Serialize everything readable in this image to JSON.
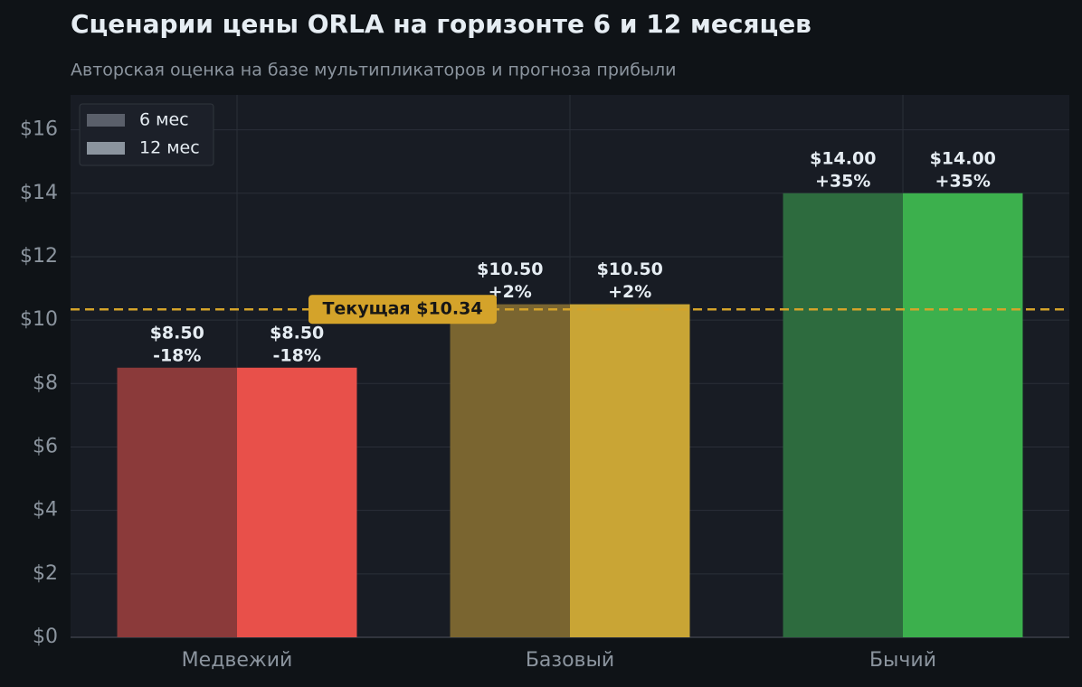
{
  "chart_data": {
    "type": "bar",
    "title": "Сценарии цены ORLA на горизонте 6 и 12 месяцев",
    "subtitle": "Авторская оценка на базе мультипликаторов и прогноза прибыли",
    "categories": [
      "Медвежий",
      "Базовый",
      "Бычий"
    ],
    "series": [
      {
        "name": "6 мес",
        "color": "#5a5f6a",
        "bar_colors": [
          "#8b3a3a",
          "#7a6530",
          "#2d6b3e"
        ],
        "values": [
          8.5,
          10.5,
          14.0
        ],
        "value_labels": [
          "$8.50",
          "$10.50",
          "$14.00"
        ],
        "changes": [
          -18,
          2,
          35
        ],
        "change_labels": [
          "-18%",
          "+2%",
          "+35%"
        ]
      },
      {
        "name": "12 мес",
        "color": "#8b949e",
        "bar_colors": [
          "#e8504a",
          "#c9a535",
          "#3cb04d"
        ],
        "values": [
          8.5,
          10.5,
          14.0
        ],
        "value_labels": [
          "$8.50",
          "$10.50",
          "$14.00"
        ],
        "changes": [
          -18,
          2,
          35
        ],
        "change_labels": [
          "-18%",
          "+2%",
          "+35%"
        ]
      }
    ],
    "reference": {
      "value": 10.34,
      "label": "Текущая $10.34",
      "color": "#d4a32a"
    },
    "ylim": [
      0,
      17.1
    ],
    "yticks": [
      {
        "value": 0,
        "label": "$0"
      },
      {
        "value": 2,
        "label": "$2"
      },
      {
        "value": 4,
        "label": "$4"
      },
      {
        "value": 6,
        "label": "$6"
      },
      {
        "value": 8,
        "label": "$8"
      },
      {
        "value": 10,
        "label": "$10"
      },
      {
        "value": 12,
        "label": "$12"
      },
      {
        "value": 14,
        "label": "$14"
      },
      {
        "value": 16,
        "label": "$16"
      }
    ],
    "grid": true,
    "legend": "upper left"
  }
}
